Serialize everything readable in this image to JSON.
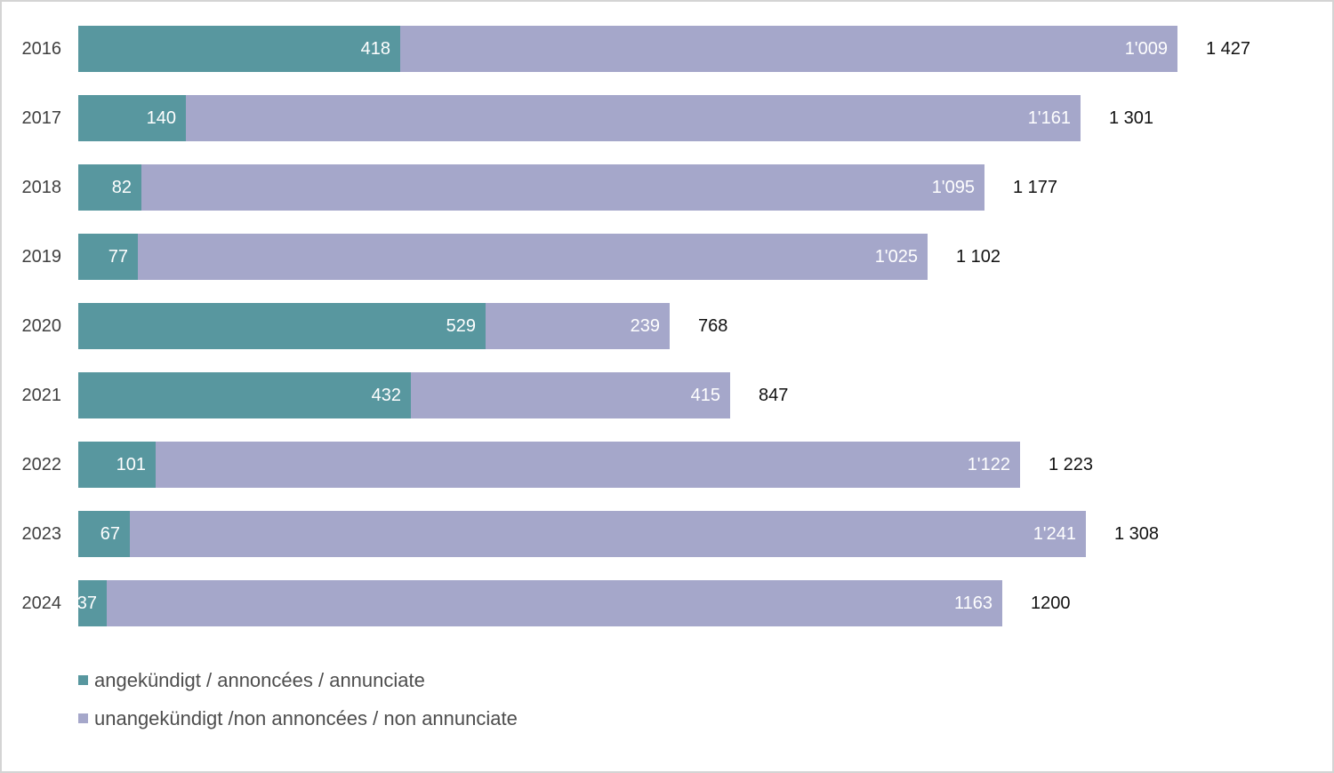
{
  "chart_data": {
    "type": "bar",
    "orientation": "horizontal",
    "stacked": true,
    "grid": false,
    "legend_position": "bottom-left",
    "categories": [
      "2016",
      "2017",
      "2018",
      "2019",
      "2020",
      "2021",
      "2022",
      "2023",
      "2024"
    ],
    "series": [
      {
        "name": "angekündigt / annoncées / annunciate",
        "color": "#58979f",
        "values": [
          418,
          140,
          82,
          77,
          529,
          432,
          101,
          67,
          37
        ],
        "labels": [
          "418",
          "140",
          "82",
          "77",
          "529",
          "432",
          "101",
          "67",
          "37"
        ]
      },
      {
        "name": "unangekündigt /non annoncées / non annunciate",
        "color": "#a5a7ca",
        "values": [
          1009,
          1161,
          1095,
          1025,
          239,
          415,
          1122,
          1241,
          1163
        ],
        "labels": [
          "1'009",
          "1'161",
          "1'095",
          "1'025",
          "239",
          "415",
          "1'122",
          "1'241",
          "1163"
        ]
      }
    ],
    "totals": [
      1427,
      1301,
      1177,
      1102,
      768,
      847,
      1223,
      1308,
      1200
    ],
    "total_labels": [
      "1 427",
      "1 301",
      "1 177",
      "1 102",
      "768",
      "847",
      "1 223",
      "1 308",
      "1200"
    ],
    "xlim": [
      0,
      1427
    ],
    "value_label_color": "#ffffff",
    "category_label_color": "#3f3f3f",
    "total_label_color": "#111111"
  },
  "layout_colors": {
    "page_border": "#d4d4d4",
    "background": "#ffffff"
  }
}
